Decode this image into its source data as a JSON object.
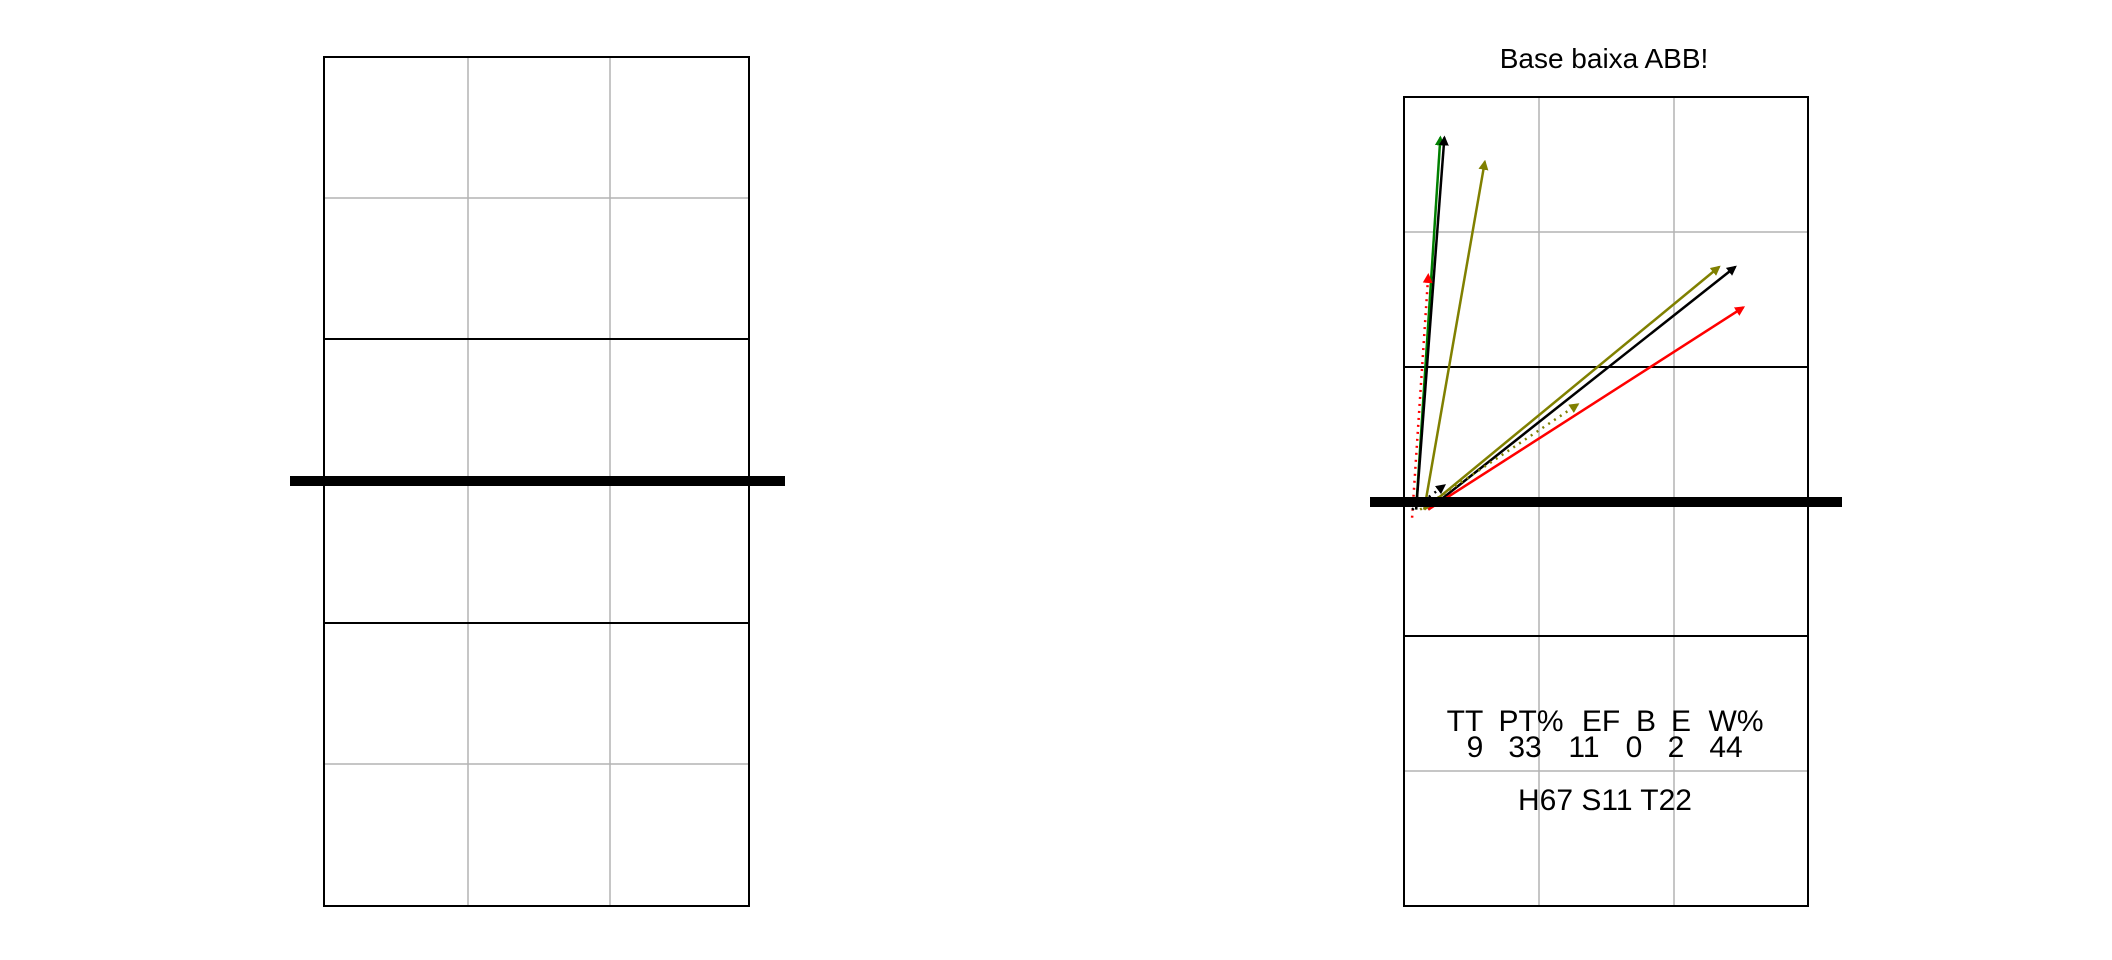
{
  "title": "Base baixa ABB!",
  "stats": {
    "headers": [
      "TT",
      "PT%",
      "EF",
      "B",
      "E",
      "W%"
    ],
    "values": [
      "9",
      "33",
      "11",
      "0",
      "2",
      "44"
    ],
    "summary": "H67 S11 T22"
  },
  "colors": {
    "black": "#000000",
    "olive": "#808000",
    "green": "#008000",
    "red": "#ff0000",
    "grid": "#b3b3b3"
  },
  "chart_data": {
    "type": "diagram",
    "courts": [
      {
        "name": "left-court",
        "arrows": []
      },
      {
        "name": "right-court",
        "arrows": [
          {
            "from": [
              0.03,
              0.49
            ],
            "to": [
              0.09,
              0.95
            ],
            "color": "green",
            "style": "solid"
          },
          {
            "from": [
              0.03,
              0.49
            ],
            "to": [
              0.1,
              0.95
            ],
            "color": "black",
            "style": "solid"
          },
          {
            "from": [
              0.05,
              0.49
            ],
            "to": [
              0.2,
              0.92
            ],
            "color": "olive",
            "style": "solid"
          },
          {
            "from": [
              0.02,
              0.48
            ],
            "to": [
              0.06,
              0.78
            ],
            "color": "red",
            "style": "dotted"
          },
          {
            "from": [
              0.05,
              0.49
            ],
            "to": [
              0.78,
              0.79
            ],
            "color": "olive",
            "style": "solid"
          },
          {
            "from": [
              0.06,
              0.49
            ],
            "to": [
              0.82,
              0.79
            ],
            "color": "black",
            "style": "solid"
          },
          {
            "from": [
              0.06,
              0.49
            ],
            "to": [
              0.84,
              0.74
            ],
            "color": "red",
            "style": "solid"
          },
          {
            "from": [
              0.04,
              0.49
            ],
            "to": [
              0.43,
              0.62
            ],
            "color": "olive",
            "style": "dotted"
          },
          {
            "from": [
              0.02,
              0.49
            ],
            "to": [
              0.1,
              0.52
            ],
            "color": "black",
            "style": "dotted"
          }
        ]
      }
    ]
  }
}
